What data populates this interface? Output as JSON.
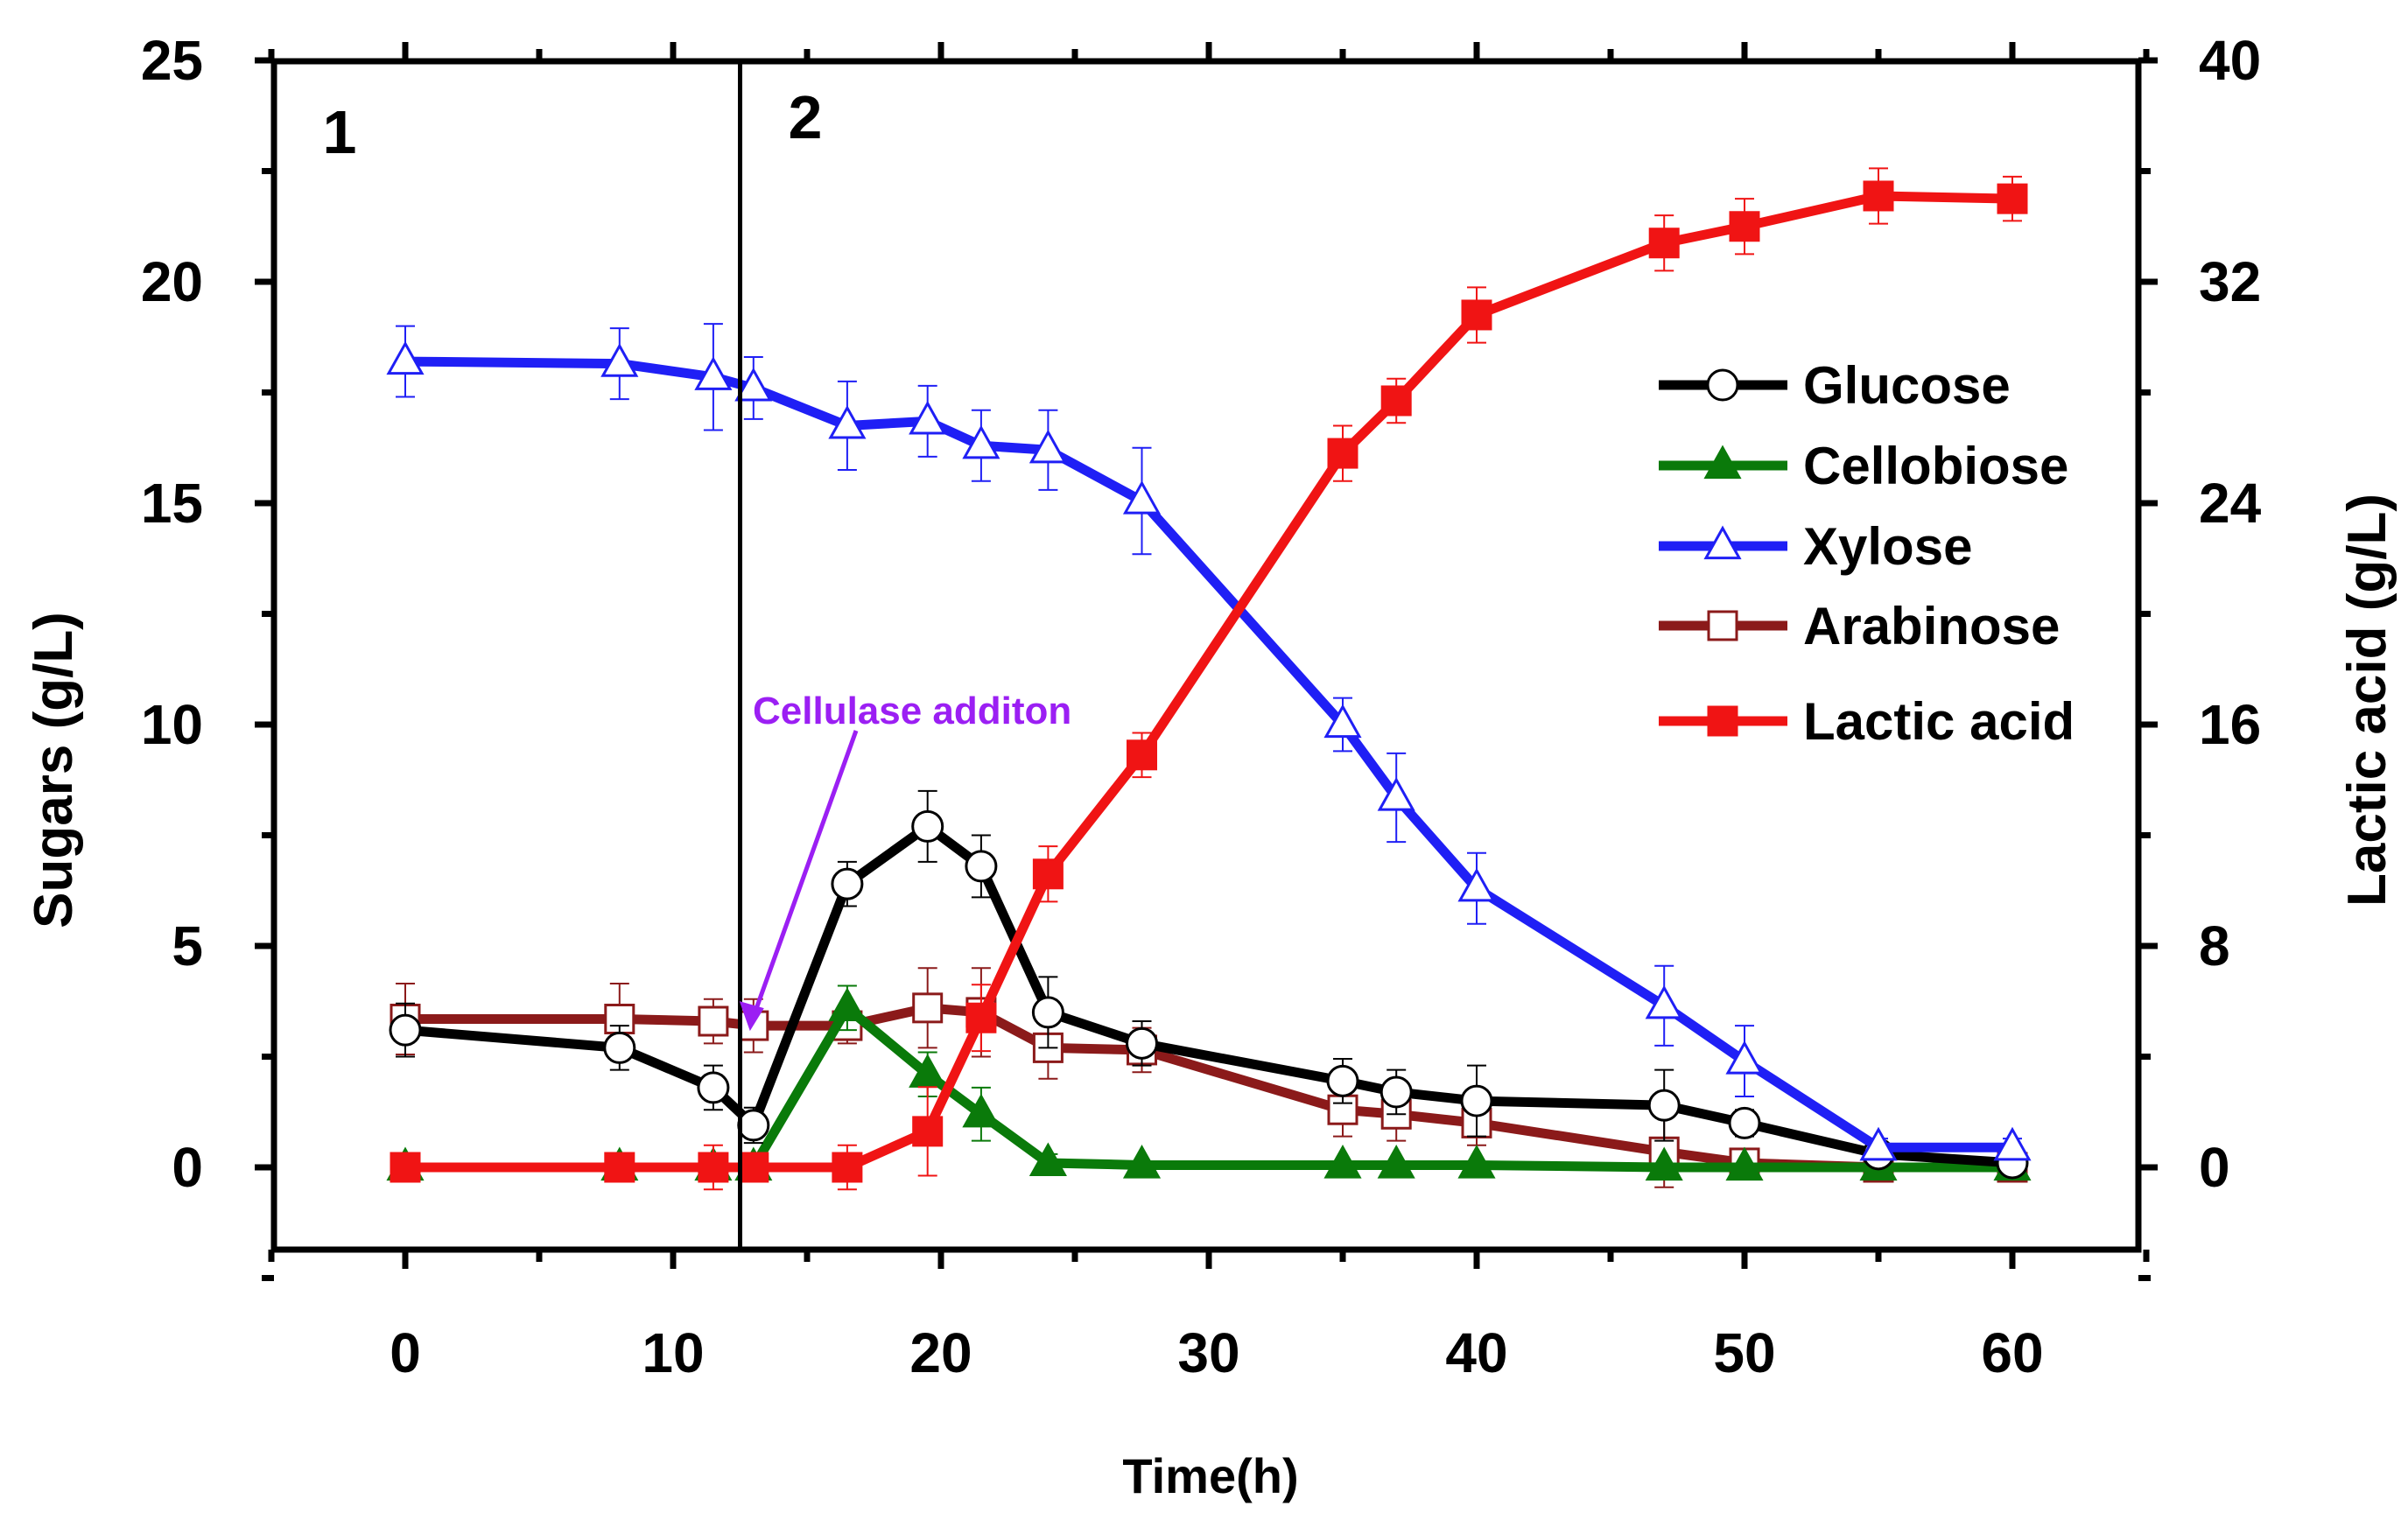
{
  "chart_data": {
    "type": "line",
    "xlabel": "Time(h)",
    "ylabel": "Sugars (g/L)",
    "y2label": "Lactic acid (g/L)",
    "xlim": [
      -5,
      65
    ],
    "ylim": [
      -3,
      25
    ],
    "y2lim": [
      -4.8,
      40
    ],
    "xticks": [
      0,
      10,
      20,
      30,
      40,
      50,
      60
    ],
    "yticks": [
      0,
      5,
      10,
      15,
      20,
      25
    ],
    "y2ticks": [
      0,
      8,
      16,
      24,
      32,
      40
    ],
    "phase_line_x": 12.5,
    "phase_labels": [
      "1",
      "2"
    ],
    "annotation": {
      "text": "Cellulase additon",
      "color": "#9B1FF3",
      "target": [
        13,
        3.2
      ]
    },
    "series": [
      {
        "name": "Glucose",
        "color": "#000000",
        "marker": "circle-open",
        "axis": "left",
        "x": [
          0,
          8,
          11.5,
          13,
          16.5,
          19.5,
          21.5,
          24,
          27.5,
          35,
          37,
          40,
          47,
          50,
          55,
          60
        ],
        "y": [
          3.1,
          2.7,
          1.8,
          0.95,
          6.4,
          7.7,
          6.8,
          3.5,
          2.8,
          1.95,
          1.7,
          1.5,
          1.4,
          1.0,
          0.3,
          0.1
        ],
        "err": [
          0.6,
          0.5,
          0.5,
          0.4,
          0.5,
          0.8,
          0.7,
          0.8,
          0.5,
          0.5,
          0.5,
          0.8,
          0.8,
          0.3,
          0.2,
          0.1
        ]
      },
      {
        "name": "Cellobiose",
        "color": "#0A7A0A",
        "marker": "triangle-filled",
        "axis": "left",
        "x": [
          0,
          8,
          11.5,
          13,
          16.5,
          19.5,
          21.5,
          24,
          27.5,
          35,
          37,
          40,
          47,
          50,
          55,
          60
        ],
        "y": [
          0,
          0,
          0,
          0,
          3.6,
          2.1,
          1.2,
          0.1,
          0.05,
          0.05,
          0.05,
          0.05,
          0,
          0,
          0,
          0
        ],
        "err": [
          0,
          0,
          0,
          0,
          0.5,
          0.5,
          0.6,
          0.2,
          0,
          0,
          0,
          0,
          0,
          0,
          0,
          0
        ]
      },
      {
        "name": "Xylose",
        "color": "#1F1FF5",
        "marker": "triangle-open",
        "axis": "left",
        "x": [
          0,
          8,
          11.5,
          13,
          16.5,
          19.5,
          21.5,
          24,
          27.5,
          35,
          37,
          40,
          47,
          50,
          55,
          60
        ],
        "y": [
          18.2,
          18.15,
          17.85,
          17.6,
          16.75,
          16.85,
          16.3,
          16.2,
          15.05,
          10.0,
          8.35,
          6.3,
          3.65,
          2.4,
          0.45,
          0.45
        ],
        "err": [
          0.8,
          0.8,
          1.2,
          0.7,
          1.0,
          0.8,
          0.8,
          0.9,
          1.2,
          0.6,
          1.0,
          0.8,
          0.9,
          0.8,
          0.2,
          0.2
        ]
      },
      {
        "name": "Arabinose",
        "color": "#8B1A1A",
        "marker": "square-open",
        "axis": "left",
        "x": [
          0,
          8,
          11.5,
          13,
          16.5,
          19.5,
          21.5,
          24,
          27.5,
          35,
          37,
          40,
          47,
          50,
          55,
          60
        ],
        "y": [
          3.35,
          3.35,
          3.3,
          3.2,
          3.2,
          3.6,
          3.5,
          2.7,
          2.65,
          1.3,
          1.2,
          1.0,
          0.35,
          0.1,
          0.0,
          0.0
        ],
        "err": [
          0.8,
          0.8,
          0.5,
          0.6,
          0.4,
          0.9,
          1.0,
          0.7,
          0.5,
          0.6,
          0.6,
          0.5,
          0.8,
          0.3,
          0.1,
          0.1
        ]
      },
      {
        "name": "Lactic acid",
        "color": "#F01414",
        "marker": "square-filled",
        "axis": "right",
        "x": [
          0,
          8,
          11.5,
          13,
          16.5,
          19.5,
          21.5,
          24,
          27.5,
          35,
          37,
          40,
          47,
          50,
          55,
          60
        ],
        "y": [
          0,
          0,
          0,
          0,
          0,
          1.3,
          5.4,
          10.6,
          14.9,
          25.8,
          27.7,
          30.8,
          33.4,
          34.0,
          35.1,
          35.0
        ],
        "err": [
          0.3,
          0.3,
          0.8,
          0.3,
          0.8,
          1.6,
          1.2,
          1.0,
          0.8,
          1.0,
          0.8,
          1.0,
          1.0,
          1.0,
          1.0,
          0.8
        ]
      }
    ]
  }
}
